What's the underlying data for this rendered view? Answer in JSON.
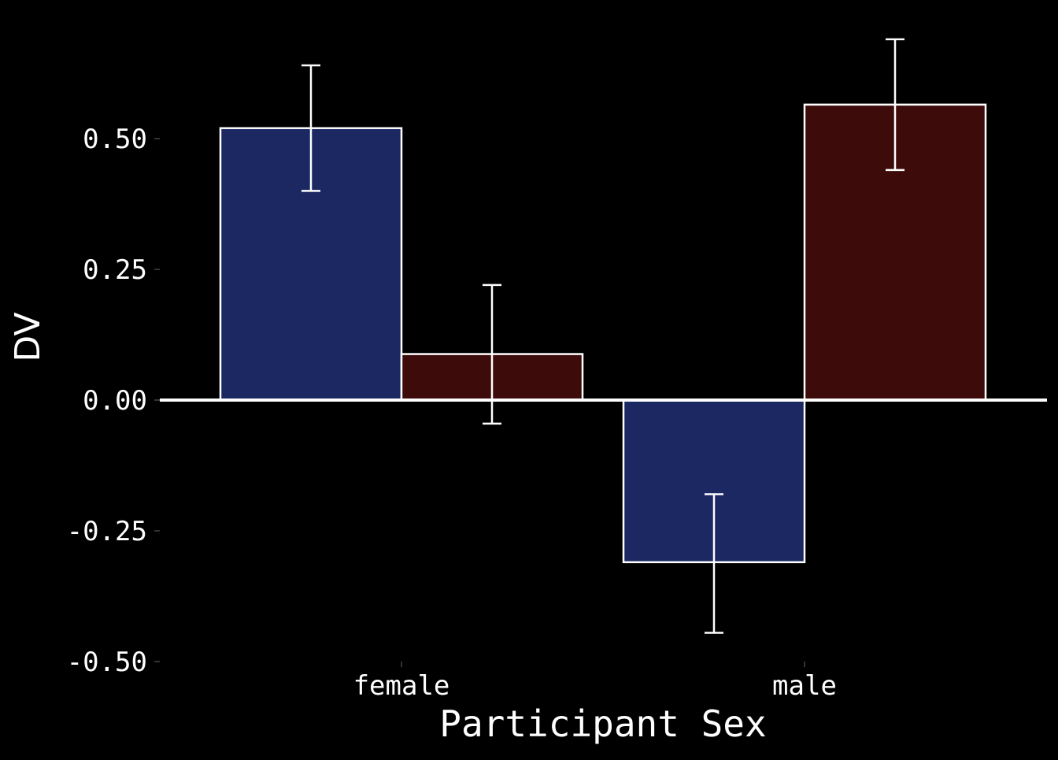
{
  "chart_data": {
    "type": "bar",
    "categories": [
      "female",
      "male"
    ],
    "series": [
      {
        "color": "#1b2862",
        "values": [
          0.52,
          -0.31
        ],
        "error_low": [
          0.4,
          -0.445
        ],
        "error_high": [
          0.64,
          -0.18
        ]
      },
      {
        "color": "#3d0c0a",
        "values": [
          0.088,
          0.565
        ],
        "error_low": [
          -0.045,
          0.44
        ],
        "error_high": [
          0.22,
          0.69
        ]
      }
    ],
    "xlabel": "Participant Sex",
    "ylabel": "DV",
    "ylim": [
      -0.5,
      0.75
    ],
    "yticks": [
      "0.50",
      "0.25",
      "0.00",
      "-0.25",
      "-0.50"
    ],
    "ytick_values": [
      0.5,
      0.25,
      0.0,
      -0.25,
      -0.5
    ],
    "zero_line": true,
    "grid": false,
    "legend": "none",
    "bar_edge_color": "#ffffff",
    "background": "#000000"
  }
}
